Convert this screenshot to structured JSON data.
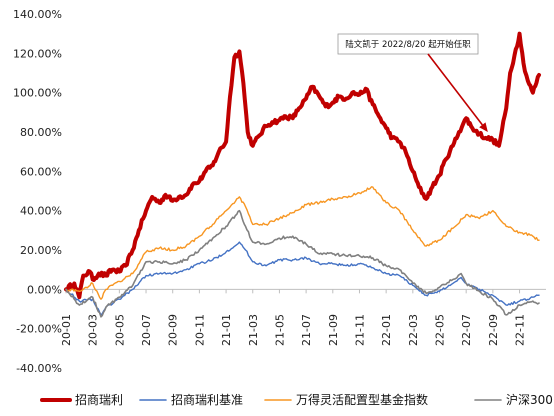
{
  "chart_data": {
    "type": "line",
    "title": "",
    "xlabel": "",
    "ylabel": "",
    "ylim": [
      -0.4,
      1.4
    ],
    "y_ticks": [
      "140.00%",
      "120.00%",
      "100.00%",
      "80.00%",
      "60.00%",
      "40.00%",
      "20.00%",
      "0.00%",
      "-20.00%",
      "-40.00%"
    ],
    "x_ticks": [
      "20-01",
      "20-03",
      "20-05",
      "20-07",
      "20-09",
      "20-11",
      "21-01",
      "21-03",
      "21-05",
      "21-07",
      "21-09",
      "21-11",
      "22-01",
      "22-03",
      "22-05",
      "22-07",
      "22-09",
      "22-11"
    ],
    "grid": false,
    "legend_position": "bottom",
    "annotation": {
      "text": "陆文凯于 2022/8/20 起开始任职",
      "target_date": "22-08-20"
    },
    "series": [
      {
        "name": "招商瑞利",
        "color": "#c00000",
        "points": [
          [
            "20-01",
            0.0
          ],
          [
            "20-01-20",
            0.03
          ],
          [
            "20-02",
            -0.04
          ],
          [
            "20-02-10",
            0.07
          ],
          [
            "20-02-25",
            0.09
          ],
          [
            "20-03",
            0.05
          ],
          [
            "20-03-15",
            0.08
          ],
          [
            "20-04",
            0.07
          ],
          [
            "20-04-15",
            0.1
          ],
          [
            "20-05",
            0.09
          ],
          [
            "20-05-15",
            0.12
          ],
          [
            "20-06",
            0.2
          ],
          [
            "20-06-15",
            0.3
          ],
          [
            "20-06-25",
            0.36
          ],
          [
            "20-07",
            0.4
          ],
          [
            "20-07-15",
            0.47
          ],
          [
            "20-08",
            0.44
          ],
          [
            "20-08-15",
            0.48
          ],
          [
            "20-09",
            0.45
          ],
          [
            "20-09-15",
            0.47
          ],
          [
            "20-10",
            0.48
          ],
          [
            "20-10-15",
            0.53
          ],
          [
            "20-11",
            0.55
          ],
          [
            "20-11-15",
            0.6
          ],
          [
            "20-12",
            0.63
          ],
          [
            "20-12-15",
            0.7
          ],
          [
            "21-01",
            0.75
          ],
          [
            "21-01-10",
            0.98
          ],
          [
            "21-01-20",
            1.18
          ],
          [
            "21-02",
            1.21
          ],
          [
            "21-02-10",
            1.05
          ],
          [
            "21-02-20",
            0.8
          ],
          [
            "21-03",
            0.73
          ],
          [
            "21-03-15",
            0.78
          ],
          [
            "21-04",
            0.83
          ],
          [
            "21-04-15",
            0.85
          ],
          [
            "21-05",
            0.86
          ],
          [
            "21-05-15",
            0.88
          ],
          [
            "21-06",
            0.87
          ],
          [
            "21-06-15",
            0.92
          ],
          [
            "21-07",
            0.97
          ],
          [
            "21-07-15",
            1.03
          ],
          [
            "21-08",
            0.98
          ],
          [
            "21-08-15",
            0.93
          ],
          [
            "21-09",
            0.95
          ],
          [
            "21-09-15",
            0.98
          ],
          [
            "21-10",
            0.97
          ],
          [
            "21-10-15",
            1.0
          ],
          [
            "21-11",
            0.99
          ],
          [
            "21-11-15",
            1.02
          ],
          [
            "21-12",
            0.94
          ],
          [
            "21-12-15",
            0.88
          ],
          [
            "22-01",
            0.82
          ],
          [
            "22-01-15",
            0.77
          ],
          [
            "22-02",
            0.75
          ],
          [
            "22-02-15",
            0.7
          ],
          [
            "22-03",
            0.6
          ],
          [
            "22-03-15",
            0.52
          ],
          [
            "22-04",
            0.46
          ],
          [
            "22-04-15",
            0.52
          ],
          [
            "22-05",
            0.58
          ],
          [
            "22-05-15",
            0.66
          ],
          [
            "22-06",
            0.73
          ],
          [
            "22-06-15",
            0.8
          ],
          [
            "22-07",
            0.87
          ],
          [
            "22-07-15",
            0.82
          ],
          [
            "22-08",
            0.79
          ],
          [
            "22-08-15",
            0.77
          ],
          [
            "22-09",
            0.76
          ],
          [
            "22-09-15",
            0.73
          ],
          [
            "22-10",
            0.92
          ],
          [
            "22-10-10",
            1.1
          ],
          [
            "22-10-20",
            1.19
          ],
          [
            "22-11",
            1.3
          ],
          [
            "22-11-10",
            1.15
          ],
          [
            "22-11-20",
            1.06
          ],
          [
            "22-12",
            1.0
          ],
          [
            "22-12-15",
            1.09
          ]
        ]
      },
      {
        "name": "招商瑞利基准",
        "color": "#4472c4",
        "points": [
          [
            "20-01",
            0.0
          ],
          [
            "20-02",
            -0.06
          ],
          [
            "20-03",
            -0.05
          ],
          [
            "20-03-20",
            -0.13
          ],
          [
            "20-04",
            -0.09
          ],
          [
            "20-05",
            -0.05
          ],
          [
            "20-06",
            0.0
          ],
          [
            "20-07",
            0.07
          ],
          [
            "20-08",
            0.08
          ],
          [
            "20-09",
            0.08
          ],
          [
            "20-10",
            0.1
          ],
          [
            "20-11",
            0.13
          ],
          [
            "20-12",
            0.15
          ],
          [
            "21-01",
            0.19
          ],
          [
            "21-02",
            0.24
          ],
          [
            "21-02-15",
            0.2
          ],
          [
            "21-03",
            0.14
          ],
          [
            "21-04",
            0.12
          ],
          [
            "21-05",
            0.15
          ],
          [
            "21-06",
            0.15
          ],
          [
            "21-07",
            0.16
          ],
          [
            "21-08",
            0.13
          ],
          [
            "21-09",
            0.13
          ],
          [
            "21-10",
            0.12
          ],
          [
            "21-11",
            0.13
          ],
          [
            "21-12",
            0.11
          ],
          [
            "22-01",
            0.08
          ],
          [
            "22-02",
            0.07
          ],
          [
            "22-03",
            0.02
          ],
          [
            "22-04",
            -0.03
          ],
          [
            "22-05",
            -0.01
          ],
          [
            "22-06",
            0.03
          ],
          [
            "22-06-20",
            0.06
          ],
          [
            "22-07",
            0.03
          ],
          [
            "22-08",
            0.0
          ],
          [
            "22-09",
            -0.03
          ],
          [
            "22-10",
            -0.08
          ],
          [
            "22-11",
            -0.06
          ],
          [
            "22-12",
            -0.04
          ],
          [
            "22-12-15",
            -0.03
          ]
        ]
      },
      {
        "name": "万得灵活配置型基金指数",
        "color": "#f79622",
        "points": [
          [
            "20-01",
            0.0
          ],
          [
            "20-02",
            -0.01
          ],
          [
            "20-03",
            0.03
          ],
          [
            "20-03-20",
            -0.05
          ],
          [
            "20-04",
            0.0
          ],
          [
            "20-05",
            0.04
          ],
          [
            "20-06",
            0.08
          ],
          [
            "20-07",
            0.19
          ],
          [
            "20-08",
            0.21
          ],
          [
            "20-09",
            0.2
          ],
          [
            "20-10",
            0.22
          ],
          [
            "20-11",
            0.27
          ],
          [
            "20-12",
            0.33
          ],
          [
            "21-01",
            0.4
          ],
          [
            "21-02",
            0.47
          ],
          [
            "21-02-15",
            0.42
          ],
          [
            "21-03",
            0.33
          ],
          [
            "21-04",
            0.33
          ],
          [
            "21-05",
            0.36
          ],
          [
            "21-06",
            0.39
          ],
          [
            "21-07",
            0.43
          ],
          [
            "21-08",
            0.44
          ],
          [
            "21-09",
            0.46
          ],
          [
            "21-10",
            0.47
          ],
          [
            "21-11",
            0.49
          ],
          [
            "21-12",
            0.52
          ],
          [
            "22-01",
            0.44
          ],
          [
            "22-02",
            0.4
          ],
          [
            "22-03",
            0.3
          ],
          [
            "22-04",
            0.22
          ],
          [
            "22-05",
            0.25
          ],
          [
            "22-06",
            0.31
          ],
          [
            "22-07",
            0.38
          ],
          [
            "22-08",
            0.36
          ],
          [
            "22-09",
            0.4
          ],
          [
            "22-10",
            0.32
          ],
          [
            "22-11",
            0.29
          ],
          [
            "22-12",
            0.27
          ],
          [
            "22-12-15",
            0.25
          ]
        ]
      },
      {
        "name": "沪深300",
        "color": "#808080",
        "points": [
          [
            "20-01",
            0.0
          ],
          [
            "20-02",
            -0.08
          ],
          [
            "20-03",
            -0.04
          ],
          [
            "20-03-20",
            -0.14
          ],
          [
            "20-04",
            -0.09
          ],
          [
            "20-05",
            -0.04
          ],
          [
            "20-06",
            0.02
          ],
          [
            "20-07",
            0.14
          ],
          [
            "20-08",
            0.14
          ],
          [
            "20-09",
            0.13
          ],
          [
            "20-10",
            0.15
          ],
          [
            "20-11",
            0.2
          ],
          [
            "20-12",
            0.26
          ],
          [
            "21-01",
            0.32
          ],
          [
            "21-02",
            0.4
          ],
          [
            "21-02-15",
            0.32
          ],
          [
            "21-03",
            0.24
          ],
          [
            "21-04",
            0.23
          ],
          [
            "21-05",
            0.26
          ],
          [
            "21-06",
            0.27
          ],
          [
            "21-07",
            0.23
          ],
          [
            "21-08",
            0.18
          ],
          [
            "21-09",
            0.18
          ],
          [
            "21-10",
            0.17
          ],
          [
            "21-11",
            0.17
          ],
          [
            "21-12",
            0.16
          ],
          [
            "22-01",
            0.12
          ],
          [
            "22-02",
            0.1
          ],
          [
            "22-03",
            0.03
          ],
          [
            "22-04",
            -0.02
          ],
          [
            "22-05",
            0.01
          ],
          [
            "22-06",
            0.05
          ],
          [
            "22-06-20",
            0.08
          ],
          [
            "22-07",
            0.03
          ],
          [
            "22-08",
            -0.01
          ],
          [
            "22-09",
            -0.05
          ],
          [
            "22-10",
            -0.13
          ],
          [
            "22-11",
            -0.08
          ],
          [
            "22-12",
            -0.06
          ],
          [
            "22-12-15",
            -0.07
          ]
        ]
      }
    ]
  }
}
